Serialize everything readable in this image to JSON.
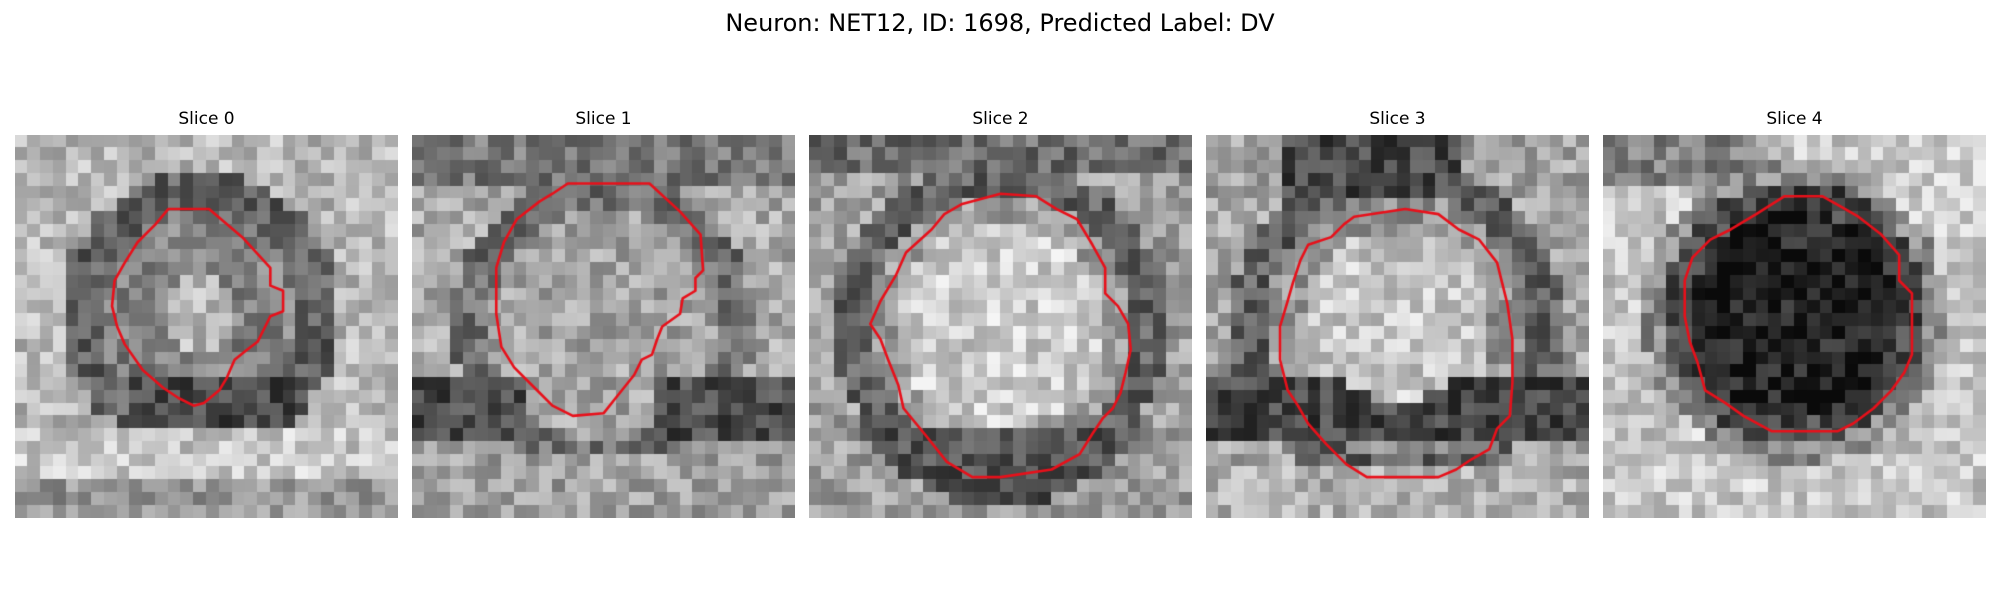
{
  "figure": {
    "title": "Neuron: NET12, ID: 1698, Predicted Label: DV"
  },
  "panels": [
    {
      "title": "Slice 0",
      "texture": "dark-ring",
      "contour": [
        [
          120,
          58
        ],
        [
          152,
          58
        ],
        [
          178,
          80
        ],
        [
          200,
          104
        ],
        [
          200,
          118
        ],
        [
          210,
          122
        ],
        [
          210,
          138
        ],
        [
          200,
          142
        ],
        [
          196,
          150
        ],
        [
          190,
          162
        ],
        [
          182,
          168
        ],
        [
          172,
          176
        ],
        [
          166,
          190
        ],
        [
          160,
          200
        ],
        [
          148,
          210
        ],
        [
          140,
          212
        ],
        [
          128,
          206
        ],
        [
          116,
          198
        ],
        [
          100,
          184
        ],
        [
          86,
          164
        ],
        [
          80,
          150
        ],
        [
          76,
          134
        ],
        [
          78,
          114
        ],
        [
          86,
          100
        ],
        [
          96,
          84
        ],
        [
          110,
          70
        ]
      ]
    },
    {
      "title": "Slice 1",
      "texture": "ring",
      "contour": [
        [
          122,
          38
        ],
        [
          186,
          38
        ],
        [
          210,
          60
        ],
        [
          226,
          78
        ],
        [
          228,
          106
        ],
        [
          222,
          112
        ],
        [
          222,
          122
        ],
        [
          212,
          128
        ],
        [
          210,
          140
        ],
        [
          196,
          150
        ],
        [
          192,
          160
        ],
        [
          188,
          172
        ],
        [
          180,
          176
        ],
        [
          174,
          188
        ],
        [
          166,
          198
        ],
        [
          158,
          208
        ],
        [
          150,
          218
        ],
        [
          126,
          220
        ],
        [
          110,
          212
        ],
        [
          96,
          198
        ],
        [
          80,
          182
        ],
        [
          70,
          166
        ],
        [
          66,
          140
        ],
        [
          66,
          104
        ],
        [
          72,
          84
        ],
        [
          82,
          66
        ],
        [
          100,
          52
        ],
        [
          110,
          46
        ]
      ]
    },
    {
      "title": "Slice 2",
      "texture": "bright",
      "contour": [
        [
          120,
          54
        ],
        [
          150,
          46
        ],
        [
          178,
          48
        ],
        [
          194,
          58
        ],
        [
          210,
          66
        ],
        [
          222,
          86
        ],
        [
          232,
          104
        ],
        [
          232,
          124
        ],
        [
          242,
          134
        ],
        [
          250,
          148
        ],
        [
          252,
          168
        ],
        [
          248,
          186
        ],
        [
          244,
          202
        ],
        [
          238,
          214
        ],
        [
          230,
          222
        ],
        [
          222,
          234
        ],
        [
          212,
          250
        ],
        [
          190,
          262
        ],
        [
          150,
          268
        ],
        [
          128,
          268
        ],
        [
          108,
          256
        ],
        [
          92,
          236
        ],
        [
          74,
          214
        ],
        [
          70,
          196
        ],
        [
          62,
          176
        ],
        [
          56,
          160
        ],
        [
          48,
          148
        ],
        [
          56,
          130
        ],
        [
          68,
          110
        ],
        [
          76,
          92
        ],
        [
          96,
          74
        ],
        [
          106,
          62
        ]
      ]
    },
    {
      "title": "Slice 3",
      "texture": "bright-dark-bottom",
      "contour": [
        [
          116,
          64
        ],
        [
          156,
          58
        ],
        [
          182,
          62
        ],
        [
          198,
          74
        ],
        [
          214,
          82
        ],
        [
          228,
          100
        ],
        [
          232,
          116
        ],
        [
          236,
          132
        ],
        [
          240,
          160
        ],
        [
          240,
          194
        ],
        [
          238,
          220
        ],
        [
          228,
          230
        ],
        [
          222,
          246
        ],
        [
          208,
          254
        ],
        [
          196,
          262
        ],
        [
          182,
          268
        ],
        [
          126,
          268
        ],
        [
          110,
          258
        ],
        [
          94,
          242
        ],
        [
          80,
          226
        ],
        [
          72,
          212
        ],
        [
          64,
          200
        ],
        [
          58,
          176
        ],
        [
          58,
          150
        ],
        [
          64,
          130
        ],
        [
          68,
          116
        ],
        [
          74,
          98
        ],
        [
          80,
          86
        ],
        [
          98,
          80
        ],
        [
          108,
          70
        ]
      ]
    },
    {
      "title": "Slice 4",
      "texture": "dark-blob",
      "contour": [
        [
          120,
          62
        ],
        [
          142,
          48
        ],
        [
          172,
          48
        ],
        [
          186,
          56
        ],
        [
          200,
          64
        ],
        [
          218,
          78
        ],
        [
          232,
          94
        ],
        [
          232,
          114
        ],
        [
          242,
          124
        ],
        [
          242,
          172
        ],
        [
          236,
          186
        ],
        [
          226,
          200
        ],
        [
          212,
          214
        ],
        [
          196,
          226
        ],
        [
          184,
          232
        ],
        [
          132,
          232
        ],
        [
          110,
          220
        ],
        [
          96,
          210
        ],
        [
          80,
          200
        ],
        [
          74,
          178
        ],
        [
          68,
          162
        ],
        [
          64,
          142
        ],
        [
          64,
          114
        ],
        [
          70,
          96
        ],
        [
          84,
          82
        ],
        [
          100,
          74
        ]
      ]
    }
  ],
  "colors": {
    "contour": "#e8101a"
  }
}
